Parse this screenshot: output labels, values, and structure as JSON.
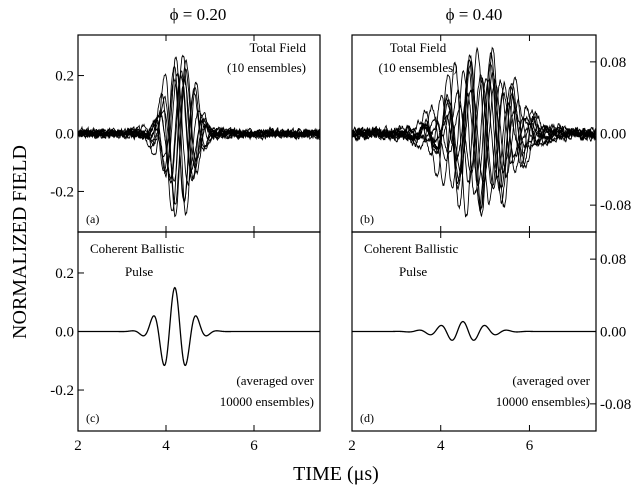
{
  "chart_data": [
    {
      "type": "line",
      "panel": "a",
      "title": "ϕ = 0.20",
      "annotation": [
        "Total Field",
        "(10 ensembles)"
      ],
      "panel_label": "(a)",
      "x_ticks": [
        "2",
        "4",
        "6"
      ],
      "y_ticks": [
        "0.2",
        "0.0",
        "-0.2"
      ],
      "xlim": [
        2,
        7.5
      ],
      "ylim": [
        -0.34,
        0.34
      ],
      "series_count": 10,
      "center_frequency_mhz": 2.0,
      "envelope_center_us": 4.3,
      "envelope_width_us": 0.45,
      "envelope_peak": 0.3,
      "noise_level": 0.015
    },
    {
      "type": "line",
      "panel": "b",
      "title": "ϕ = 0.40",
      "annotation": [
        "Total Field",
        "(10 ensembles)"
      ],
      "panel_label": "(b)",
      "x_ticks": [
        "2",
        "4",
        "6"
      ],
      "y_ticks": [
        "0.08",
        "0.00",
        "-0.08"
      ],
      "xlim": [
        2,
        7.5
      ],
      "ylim": [
        -0.11,
        0.11
      ],
      "series_count": 10,
      "center_frequency_mhz": 2.0,
      "envelope_center_us": 4.9,
      "envelope_width_us": 0.9,
      "envelope_peak": 0.095,
      "noise_level": 0.006
    },
    {
      "type": "line",
      "panel": "c",
      "annotation": [
        "Coherent Ballistic",
        "Pulse"
      ],
      "annotation2": [
        "(averaged over",
        "10000 ensembles)"
      ],
      "panel_label": "(c)",
      "x_ticks": [
        "2",
        "4",
        "6"
      ],
      "y_ticks": [
        "0.2",
        "0.0",
        "-0.2"
      ],
      "xlim": [
        2,
        7.5
      ],
      "ylim": [
        -0.34,
        0.34
      ],
      "series_count": 1,
      "center_frequency_mhz": 2.0,
      "envelope_center_us": 4.2,
      "envelope_width_us": 0.48,
      "envelope_peak": 0.15
    },
    {
      "type": "line",
      "panel": "d",
      "annotation": [
        "Coherent Ballistic",
        "Pulse"
      ],
      "annotation2": [
        "(averaged over",
        "10000 ensembles)"
      ],
      "panel_label": "(d)",
      "x_ticks": [
        "2",
        "4",
        "6"
      ],
      "y_ticks": [
        "0.08",
        "0.00",
        "-0.08"
      ],
      "xlim": [
        2,
        7.5
      ],
      "ylim": [
        -0.11,
        0.11
      ],
      "series_count": 1,
      "center_frequency_mhz": 2.0,
      "envelope_center_us": 4.5,
      "envelope_width_us": 0.7,
      "envelope_peak": 0.011
    }
  ],
  "ylabel": "NORMALIZED FIELD",
  "xlabel": "TIME (μs)"
}
